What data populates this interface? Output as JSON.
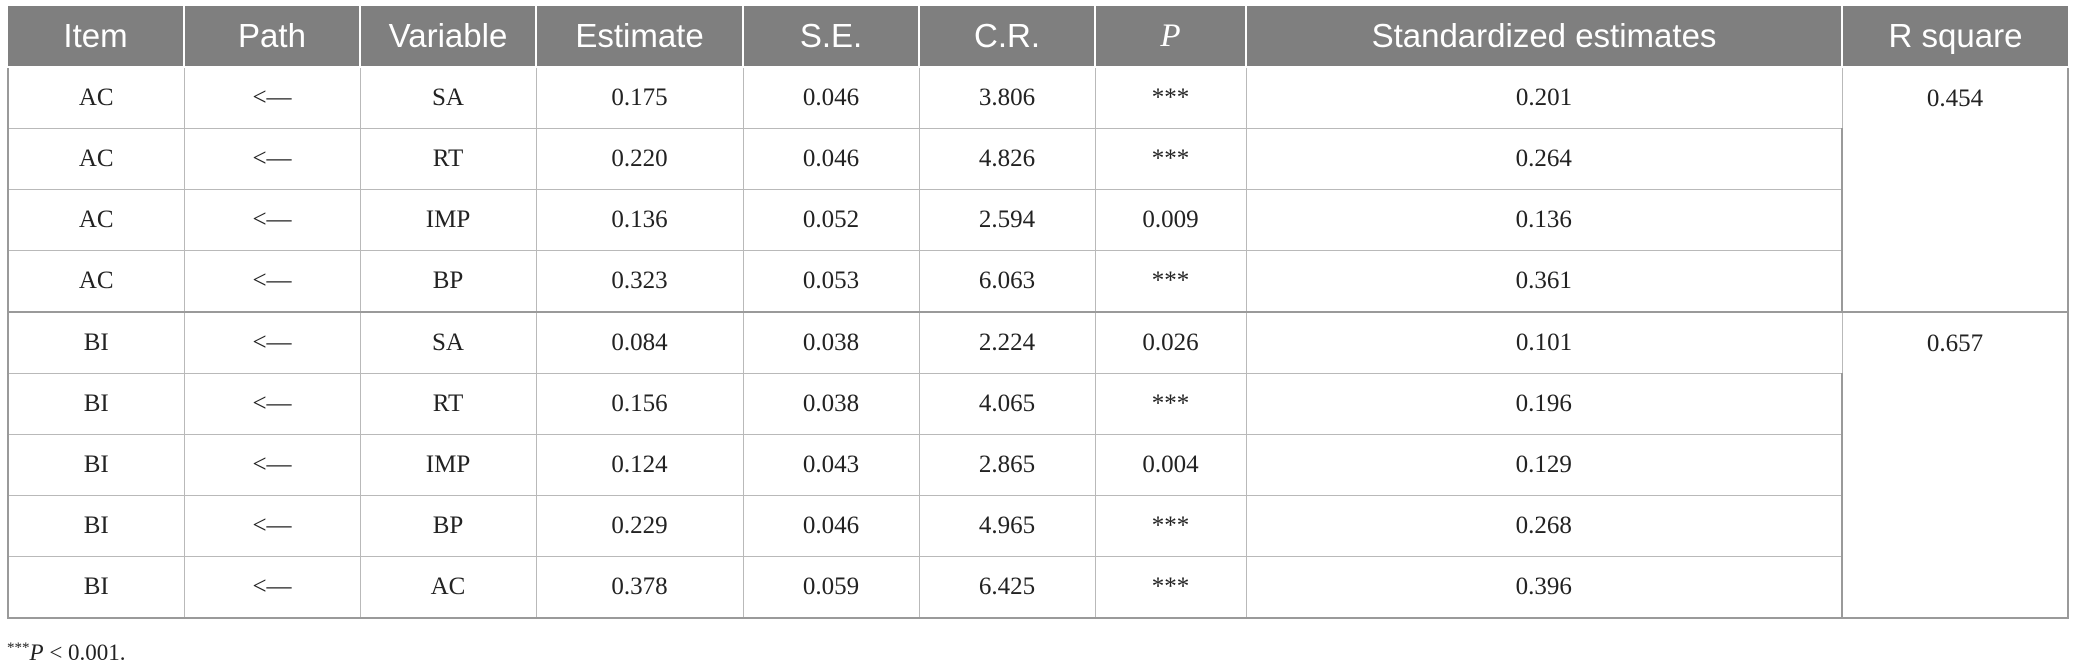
{
  "table": {
    "columns": [
      "Item",
      "Path",
      "Variable",
      "Estimate",
      "S.E.",
      "C.R.",
      "P",
      "Standardized estimates",
      "R square"
    ],
    "groups": [
      {
        "r_square": "0.454",
        "rows": [
          {
            "item": "AC",
            "path": "<—",
            "variable": "SA",
            "estimate": "0.175",
            "se": "0.046",
            "cr": "3.806",
            "p": "***",
            "std": "0.201"
          },
          {
            "item": "AC",
            "path": "<—",
            "variable": "RT",
            "estimate": "0.220",
            "se": "0.046",
            "cr": "4.826",
            "p": "***",
            "std": "0.264"
          },
          {
            "item": "AC",
            "path": "<—",
            "variable": "IMP",
            "estimate": "0.136",
            "se": "0.052",
            "cr": "2.594",
            "p": "0.009",
            "std": "0.136"
          },
          {
            "item": "AC",
            "path": "<—",
            "variable": "BP",
            "estimate": "0.323",
            "se": "0.053",
            "cr": "6.063",
            "p": "***",
            "std": "0.361"
          }
        ]
      },
      {
        "r_square": "0.657",
        "rows": [
          {
            "item": "BI",
            "path": "<—",
            "variable": "SA",
            "estimate": "0.084",
            "se": "0.038",
            "cr": "2.224",
            "p": "0.026",
            "std": "0.101"
          },
          {
            "item": "BI",
            "path": "<—",
            "variable": "RT",
            "estimate": "0.156",
            "se": "0.038",
            "cr": "4.065",
            "p": "***",
            "std": "0.196"
          },
          {
            "item": "BI",
            "path": "<—",
            "variable": "IMP",
            "estimate": "0.124",
            "se": "0.043",
            "cr": "2.865",
            "p": "0.004",
            "std": "0.129"
          },
          {
            "item": "BI",
            "path": "<—",
            "variable": "BP",
            "estimate": "0.229",
            "se": "0.046",
            "cr": "4.965",
            "p": "***",
            "std": "0.268"
          },
          {
            "item": "BI",
            "path": "<—",
            "variable": "AC",
            "estimate": "0.378",
            "se": "0.059",
            "cr": "6.425",
            "p": "***",
            "std": "0.396"
          }
        ]
      }
    ]
  },
  "footnote": {
    "marker": "***",
    "p_symbol": "P",
    "text": " < 0.001."
  },
  "colors": {
    "header_bg": "#7f7f7f",
    "header_text": "#ffffff",
    "grid": "#b9b9b9"
  }
}
